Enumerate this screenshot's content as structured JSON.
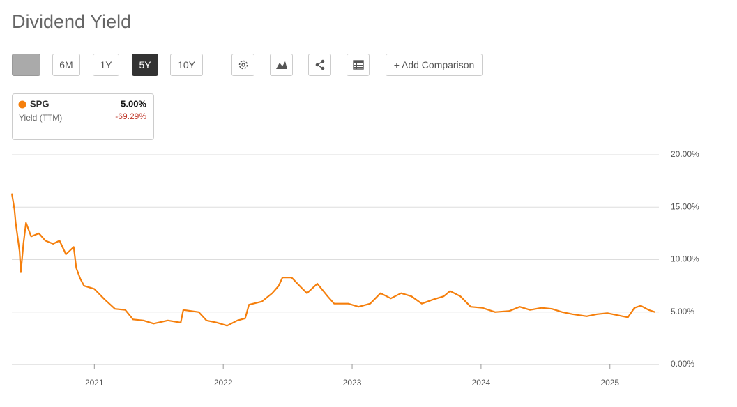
{
  "header": {
    "title": "Dividend Yield"
  },
  "toolbar": {
    "ranges": [
      "6M",
      "1Y",
      "5Y",
      "10Y"
    ],
    "active": "5Y",
    "add_comparison": "+ Add Comparison"
  },
  "legend": {
    "value": "5.00%",
    "label": "Yield (TTM)",
    "change": "-69.29%"
  },
  "chart_data": {
    "type": "line",
    "x": [
      2020.36,
      2020.38,
      2020.39,
      2020.42,
      2020.43,
      2020.45,
      2020.47,
      2020.51,
      2020.57,
      2020.62,
      2020.68,
      2020.73,
      2020.78,
      2020.84,
      2020.86,
      2020.89,
      2020.92,
      2021.0,
      2021.08,
      2021.16,
      2021.24,
      2021.3,
      2021.38,
      2021.46,
      2021.57,
      2021.67,
      2021.69,
      2021.81,
      2021.87,
      2021.95,
      2022.03,
      2022.11,
      2022.17,
      2022.2,
      2022.3,
      2022.38,
      2022.43,
      2022.46,
      2022.53,
      2022.6,
      2022.65,
      2022.73,
      2022.81,
      2022.86,
      2022.97,
      2023.05,
      2023.14,
      2023.22,
      2023.3,
      2023.38,
      2023.46,
      2023.54,
      2023.63,
      2023.71,
      2023.76,
      2023.84,
      2023.92,
      2024.01,
      2024.11,
      2024.22,
      2024.3,
      2024.38,
      2024.47,
      2024.55,
      2024.63,
      2024.71,
      2024.82,
      2024.9,
      2024.98,
      2025.06,
      2025.14,
      2025.19,
      2025.24,
      2025.3,
      2025.35
    ],
    "series": [
      {
        "name": "SPG",
        "color": "#f57f0c",
        "values": [
          16.3,
          14.8,
          13.5,
          10.8,
          8.8,
          11.5,
          13.5,
          12.2,
          12.5,
          11.8,
          11.5,
          11.8,
          10.5,
          11.2,
          9.2,
          8.2,
          7.5,
          7.2,
          6.2,
          5.3,
          5.2,
          4.3,
          4.2,
          3.9,
          4.2,
          4.0,
          5.2,
          5.0,
          4.2,
          4.0,
          3.7,
          4.2,
          4.4,
          5.7,
          6.0,
          6.8,
          7.5,
          8.3,
          8.3,
          7.4,
          6.8,
          7.7,
          6.5,
          5.8,
          5.8,
          5.5,
          5.8,
          6.8,
          6.3,
          6.8,
          6.5,
          5.8,
          6.2,
          6.5,
          7.0,
          6.5,
          5.5,
          5.4,
          5.0,
          5.1,
          5.5,
          5.2,
          5.4,
          5.3,
          5.0,
          4.8,
          4.6,
          4.8,
          4.9,
          4.7,
          4.5,
          5.4,
          5.6,
          5.2,
          5.0
        ]
      }
    ],
    "xlim": [
      2020.36,
      2025.38
    ],
    "xticks": [
      2021,
      2022,
      2023,
      2024,
      2025
    ],
    "ylim": [
      0,
      20
    ],
    "yticks": [
      {
        "value": 0,
        "label": "0.00%"
      },
      {
        "value": 5,
        "label": "5.00%"
      },
      {
        "value": 10,
        "label": "10.00%"
      },
      {
        "value": 15,
        "label": "15.00%"
      },
      {
        "value": 20,
        "label": "20.00%"
      }
    ],
    "grid": true
  }
}
